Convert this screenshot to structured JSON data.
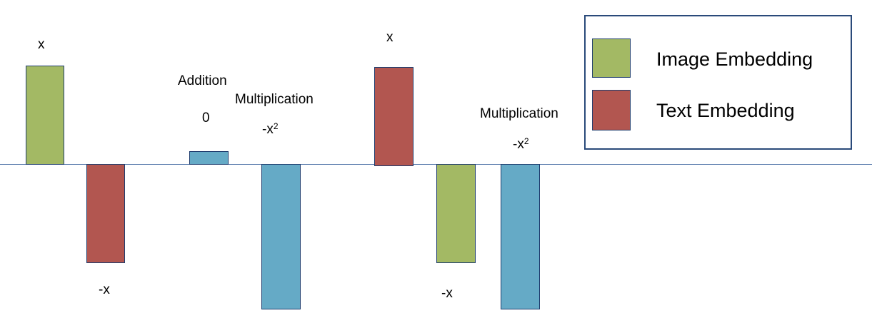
{
  "colors": {
    "image": "#a3b964",
    "text": "#b25650",
    "result": "#65aac6"
  },
  "legend": {
    "image_label": "Image Embedding",
    "text_label": "Text Embedding"
  },
  "group1": {
    "image_value": "x",
    "text_value": "-x",
    "addition_label": "Addition",
    "addition_value": "0",
    "multiplication_label": "Multiplication",
    "multiplication_value": "-x",
    "multiplication_exp": "2"
  },
  "group2": {
    "text_value": "x",
    "image_value": "-x",
    "multiplication_label": "Multiplication",
    "multiplication_value": "-x",
    "multiplication_exp": "2"
  }
}
